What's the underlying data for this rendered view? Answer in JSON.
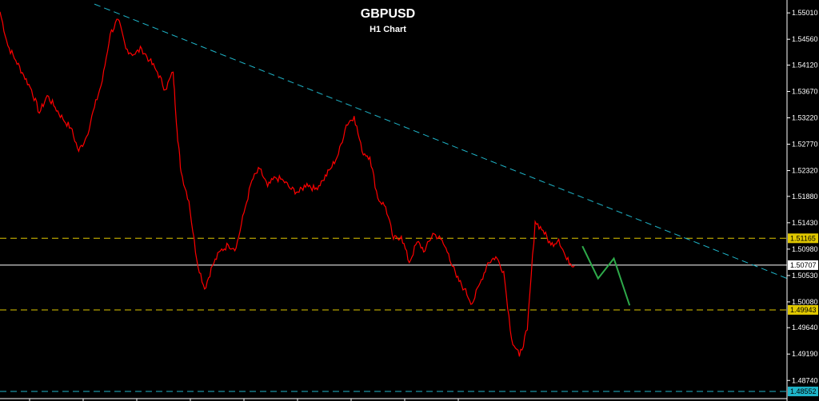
{
  "title": "GBPUSD",
  "subtitle": "H1 Chart",
  "colors": {
    "background": "#000000",
    "price": "#ff0000",
    "trendline": "#1fb5c9",
    "resistance": "#e0c800",
    "support": "#e0c800",
    "current": "#ffffff",
    "lowline": "#1fb5c9",
    "projection": "#2eaa4a",
    "axis": "#ffffff"
  },
  "chart_data": {
    "type": "line",
    "y_ticks": [
      "1.55010",
      "1.54560",
      "1.54120",
      "1.53670",
      "1.53220",
      "1.52770",
      "1.52320",
      "1.51880",
      "1.51430",
      "1.50980",
      "1.50530",
      "1.50080",
      "1.49640",
      "1.49190",
      "1.48740"
    ],
    "ylim": [
      1.4843,
      1.5523
    ],
    "level_labels": [
      {
        "label": "1.51165",
        "value": 1.51165,
        "color": "#e0c800",
        "style": "dashed"
      },
      {
        "label": "1.50707",
        "value": 1.50707,
        "color": "#ffffff",
        "style": "solid"
      },
      {
        "label": "1.49943",
        "value": 1.49943,
        "color": "#e0c800",
        "style": "dashed"
      },
      {
        "label": "1.48552",
        "value": 1.48552,
        "color": "#1fb5c9",
        "style": "dashed"
      }
    ],
    "x_range": [
      0,
      100
    ],
    "price_series": {
      "name": "",
      "x": [
        0,
        1,
        2,
        3,
        4,
        5,
        6,
        7,
        8,
        9,
        10,
        11,
        12,
        13,
        14,
        15,
        16,
        17,
        18,
        19,
        20,
        21,
        22,
        22.5,
        23,
        24,
        25,
        26,
        27,
        28,
        29,
        30,
        31,
        32,
        33,
        34,
        35,
        36,
        37,
        38,
        39,
        40,
        41,
        42,
        43,
        44,
        45,
        46,
        47,
        48,
        49,
        50,
        51,
        52,
        53,
        54,
        55,
        56,
        57,
        58,
        59,
        60,
        61,
        62,
        63,
        64,
        65,
        66,
        67,
        68,
        69,
        70,
        71,
        72,
        73
      ],
      "y": [
        1.5503,
        1.5445,
        1.542,
        1.5395,
        1.537,
        1.533,
        1.536,
        1.534,
        1.532,
        1.5305,
        1.5265,
        1.529,
        1.534,
        1.5385,
        1.5465,
        1.549,
        1.544,
        1.543,
        1.544,
        1.542,
        1.54,
        1.537,
        1.54,
        1.53,
        1.523,
        1.518,
        1.508,
        1.503,
        1.507,
        1.5095,
        1.5105,
        1.51,
        1.516,
        1.5215,
        1.5235,
        1.5205,
        1.522,
        1.5215,
        1.52,
        1.5195,
        1.521,
        1.52,
        1.5215,
        1.5235,
        1.526,
        1.531,
        1.5325,
        1.5265,
        1.5255,
        1.5185,
        1.517,
        1.5115,
        1.512,
        1.5075,
        1.511,
        1.5095,
        1.5125,
        1.5115,
        1.509,
        1.505,
        1.503,
        1.5005,
        1.504,
        1.5075,
        1.5085,
        1.506,
        1.4945,
        1.4915,
        1.496,
        1.5145,
        1.513,
        1.5105,
        1.5115,
        1.508,
        1.507
      ]
    },
    "trendline": {
      "x": [
        12,
        100
      ],
      "y": [
        1.5516,
        1.5048
      ]
    },
    "projection": {
      "x": [
        74,
        76,
        78,
        80
      ],
      "y": [
        1.5103,
        1.5048,
        1.5082,
        1.5002
      ]
    },
    "vertical_tick_count": 9
  }
}
